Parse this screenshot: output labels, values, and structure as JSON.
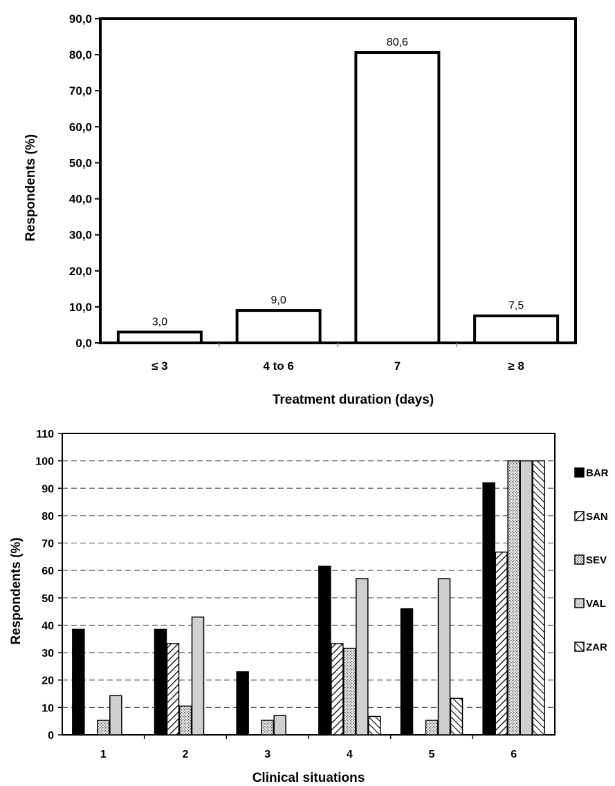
{
  "chart_data": [
    {
      "type": "bar",
      "categories": [
        "≤ 3",
        "4 to 6",
        "7",
        "≥ 8"
      ],
      "values": [
        3.0,
        9.0,
        80.6,
        7.5
      ],
      "value_labels": [
        "3,0",
        "9,0",
        "80,6",
        "7,5"
      ],
      "xlabel": "Treatment duration (days)",
      "ylabel": "Respondents (%)",
      "ylim": [
        0,
        90
      ],
      "yticks": [
        "0,0",
        "10,0",
        "20,0",
        "30,0",
        "40,0",
        "50,0",
        "60,0",
        "70,0",
        "80,0",
        "90,0"
      ],
      "grid": false,
      "legend": "none"
    },
    {
      "type": "bar",
      "categories": [
        "1",
        "2",
        "3",
        "4",
        "5",
        "6"
      ],
      "series": [
        {
          "name": "BAR",
          "values": [
            38.5,
            38.5,
            23.0,
            61.5,
            46.0,
            92.0
          ]
        },
        {
          "name": "SAN",
          "values": [
            0,
            33.3,
            0,
            33.3,
            0,
            66.7
          ]
        },
        {
          "name": "SEV",
          "values": [
            5.3,
            10.5,
            5.3,
            31.6,
            5.3,
            100
          ]
        },
        {
          "name": "VAL",
          "values": [
            14.3,
            43.0,
            7.1,
            57.0,
            57.0,
            100
          ]
        },
        {
          "name": "ZAR",
          "values": [
            0,
            0,
            0,
            6.7,
            13.3,
            100
          ]
        }
      ],
      "colors": {
        "BAR": "#000000",
        "SAN": "#ffffff",
        "SEV": "#e8e8e8",
        "VAL": "#cfcfcf",
        "ZAR": "#ffffff"
      },
      "xlabel": "Clinical situations",
      "ylabel": "Respondents (%)",
      "ylim": [
        0,
        110
      ],
      "yticks": [
        "0",
        "10",
        "20",
        "30",
        "40",
        "50",
        "60",
        "70",
        "80",
        "90",
        "100",
        "110"
      ],
      "grid": true,
      "legend": "right"
    }
  ]
}
